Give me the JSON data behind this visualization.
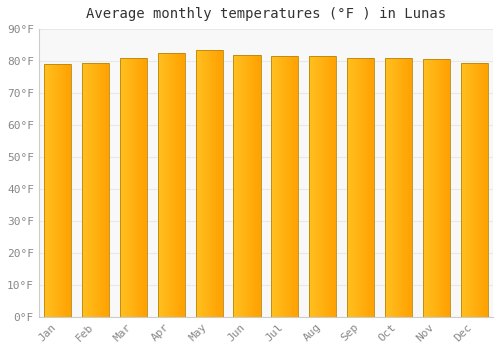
{
  "title": "Average monthly temperatures (°F ) in Lunas",
  "months": [
    "Jan",
    "Feb",
    "Mar",
    "Apr",
    "May",
    "Jun",
    "Jul",
    "Aug",
    "Sep",
    "Oct",
    "Nov",
    "Dec"
  ],
  "values": [
    79.0,
    79.5,
    81.0,
    82.5,
    83.5,
    82.0,
    81.5,
    81.5,
    81.0,
    81.0,
    80.5,
    79.5
  ],
  "ylim": [
    0,
    90
  ],
  "yticks": [
    0,
    10,
    20,
    30,
    40,
    50,
    60,
    70,
    80,
    90
  ],
  "ytick_labels": [
    "0°F",
    "10°F",
    "20°F",
    "30°F",
    "40°F",
    "50°F",
    "60°F",
    "70°F",
    "80°F",
    "90°F"
  ],
  "bar_color_left": "#FFC020",
  "bar_color_right": "#FFA000",
  "bar_edge_color": "#B8860B",
  "background_color": "#FFFFFF",
  "plot_bg_color": "#F8F8F8",
  "grid_color": "#E8E8E8",
  "title_fontsize": 10,
  "tick_fontsize": 8,
  "bar_width": 0.72
}
